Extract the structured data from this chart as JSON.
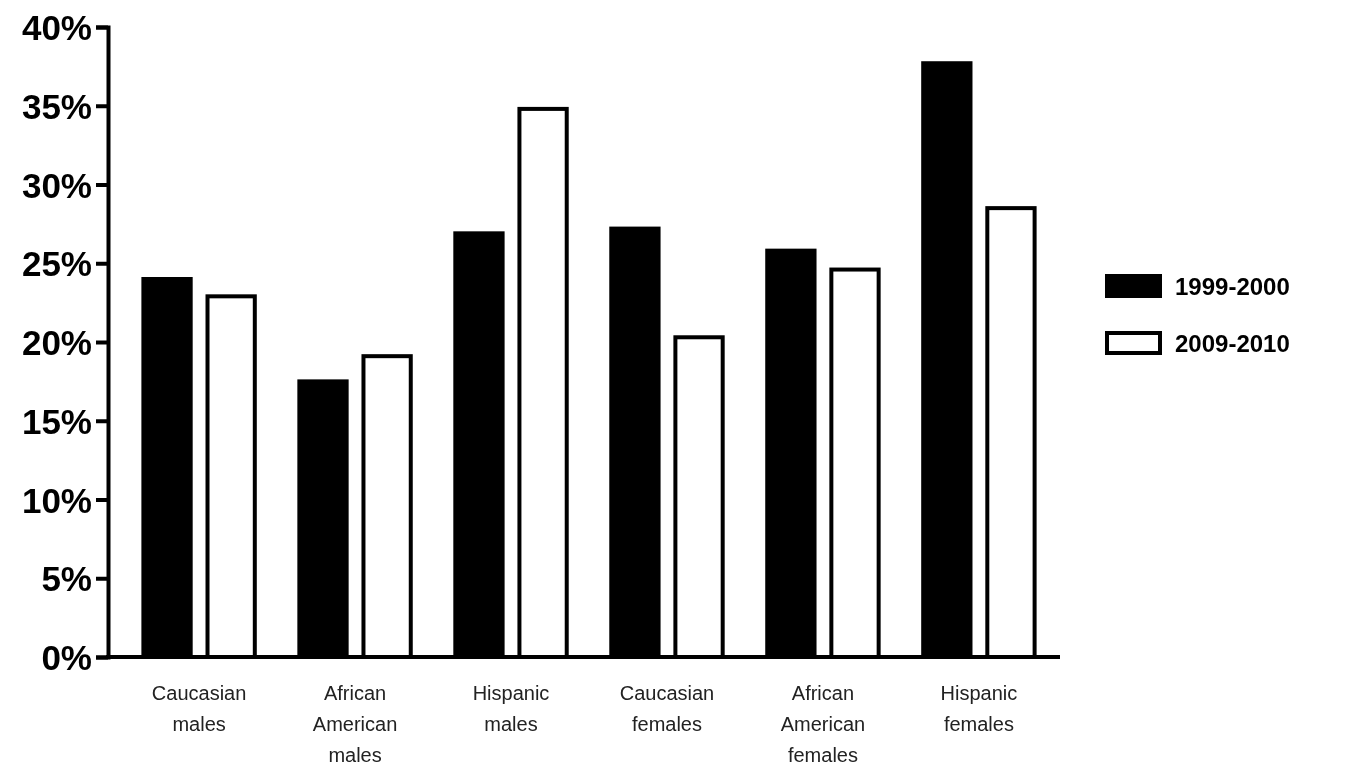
{
  "chart_data": {
    "type": "bar",
    "categories": [
      "Caucasian males",
      "African American males",
      "Hispanic males",
      "Caucasian females",
      "African American females",
      "Hispanic females"
    ],
    "series": [
      {
        "name": "1999-2000",
        "color": "#000000",
        "values": [
          24.0,
          17.5,
          26.9,
          27.2,
          25.8,
          37.7
        ]
      },
      {
        "name": "2009-2010",
        "color": "#ffffff",
        "values": [
          22.9,
          19.1,
          34.8,
          20.3,
          24.6,
          28.5
        ]
      }
    ],
    "ylim": [
      0,
      40
    ],
    "yticks": [
      {
        "value": 0,
        "label": "0%"
      },
      {
        "value": 5,
        "label": "5%"
      },
      {
        "value": 10,
        "label": "10%"
      },
      {
        "value": 15,
        "label": "15%"
      },
      {
        "value": 20,
        "label": "20%"
      },
      {
        "value": 25,
        "label": "25%"
      },
      {
        "value": 30,
        "label": "30%"
      },
      {
        "value": 35,
        "label": "35%"
      },
      {
        "value": 40,
        "label": "40%"
      }
    ],
    "grid": false,
    "legend": "right"
  }
}
